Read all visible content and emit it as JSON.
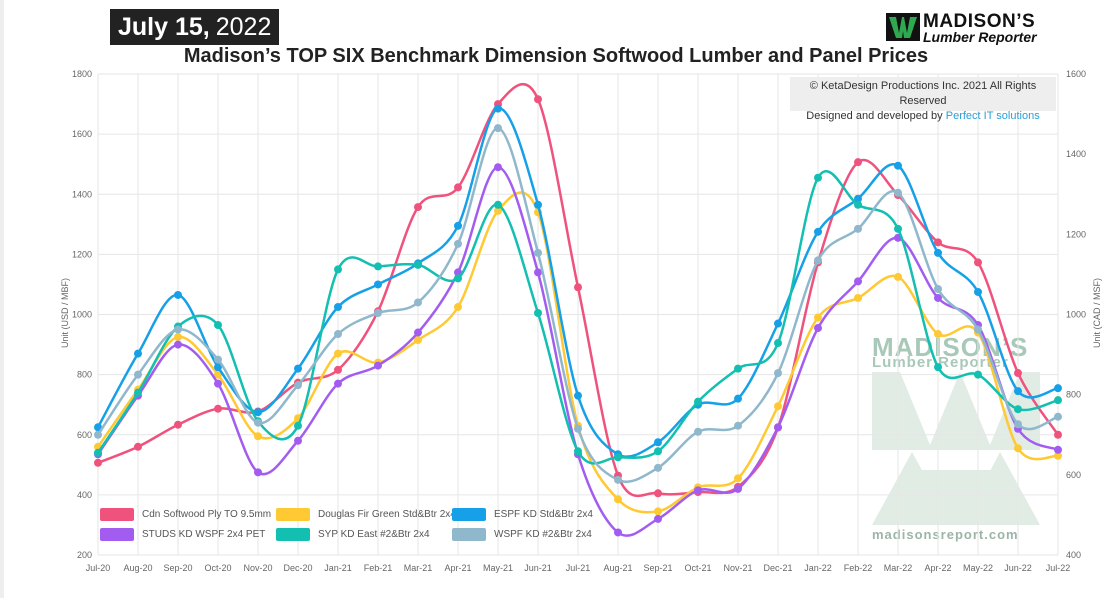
{
  "header": {
    "date_bold": "July 15,",
    "date_year": "2022",
    "title": "Madison’s TOP SIX Benchmark Dimension Softwood Lumber and Panel Prices",
    "logo_line1": "MADISON’S",
    "logo_line2": "Lumber Reporter",
    "copyright_line1": "© KetaDesign Productions Inc. 2021 All Rights Reserved",
    "copyright_prefix": "Designed and developed by ",
    "copyright_link": "Perfect IT solutions"
  },
  "watermark": {
    "line1": "MADISON’S",
    "line2": "Lumber Reporter",
    "url": "madisonsreport.com"
  },
  "chart_data": {
    "type": "line",
    "x": [
      "Jul-20",
      "Aug-20",
      "Sep-20",
      "Oct-20",
      "Nov-20",
      "Dec-20",
      "Jan-21",
      "Feb-21",
      "Mar-21",
      "Apr-21",
      "May-21",
      "Jun-21",
      "Jul-21",
      "Aug-21",
      "Sep-21",
      "Oct-21",
      "Nov-21",
      "Dec-21",
      "Jan-22",
      "Feb-22",
      "Mar-22",
      "Apr-22",
      "May-22",
      "Jun-22",
      "Jul-22"
    ],
    "ylabel": "Unit (USD / MBF)",
    "y2label": "Unit (CAD / MSF)",
    "ylim": [
      200,
      1800
    ],
    "y2lim": [
      400,
      1600
    ],
    "yticks": [
      200,
      400,
      600,
      800,
      1000,
      1200,
      1400,
      1600,
      1800
    ],
    "y2ticks": [
      400,
      600,
      800,
      1000,
      1200,
      1400,
      1600
    ],
    "grid": true,
    "legend_position": "bottom-left",
    "series": [
      {
        "name": "Cdn Softwood Ply TO 9.5mm",
        "color": "#f0527e",
        "axis": "right",
        "values": [
          630,
          670,
          725,
          765,
          758,
          830,
          862,
          1008,
          1268,
          1317,
          1525,
          1537,
          1068,
          598,
          554,
          557,
          570,
          718,
          1130,
          1380,
          1298,
          1180,
          1130,
          854,
          700
        ]
      },
      {
        "name": "Douglas Fir Green Std&Btr 2x4",
        "color": "#ffc933",
        "axis": "left",
        "values": [
          560,
          750,
          925,
          800,
          595,
          655,
          870,
          840,
          915,
          1025,
          1345,
          1340,
          630,
          385,
          345,
          425,
          455,
          695,
          990,
          1055,
          1125,
          935,
          940,
          555,
          530
        ]
      },
      {
        "name": "ESPF KD Std&Btr 2x4",
        "color": "#16a0e8",
        "axis": "left",
        "values": [
          625,
          870,
          1065,
          825,
          675,
          820,
          1025,
          1100,
          1170,
          1295,
          1685,
          1365,
          730,
          535,
          575,
          700,
          720,
          970,
          1275,
          1385,
          1495,
          1205,
          1075,
          745,
          755
        ]
      },
      {
        "name": "STUDS KD WSPF 2x4 PET",
        "color": "#a35cf0",
        "axis": "left",
        "values": [
          535,
          730,
          900,
          770,
          475,
          580,
          770,
          830,
          940,
          1140,
          1490,
          1140,
          535,
          275,
          320,
          415,
          420,
          625,
          955,
          1110,
          1255,
          1055,
          965,
          620,
          550
        ]
      },
      {
        "name": "SYP KD East #2&Btr 2x4",
        "color": "#12bfb0",
        "axis": "left",
        "values": [
          540,
          740,
          960,
          965,
          645,
          630,
          1150,
          1160,
          1165,
          1120,
          1365,
          1005,
          545,
          525,
          545,
          710,
          820,
          905,
          1455,
          1365,
          1285,
          825,
          800,
          685,
          715
        ]
      },
      {
        "name": "WSPF KD #2&Btr 2x4",
        "color": "#8fb8cc",
        "axis": "left",
        "values": [
          600,
          800,
          950,
          850,
          640,
          765,
          935,
          1005,
          1040,
          1235,
          1620,
          1205,
          620,
          450,
          490,
          610,
          630,
          805,
          1180,
          1285,
          1405,
          1085,
          950,
          635,
          660
        ]
      }
    ]
  }
}
